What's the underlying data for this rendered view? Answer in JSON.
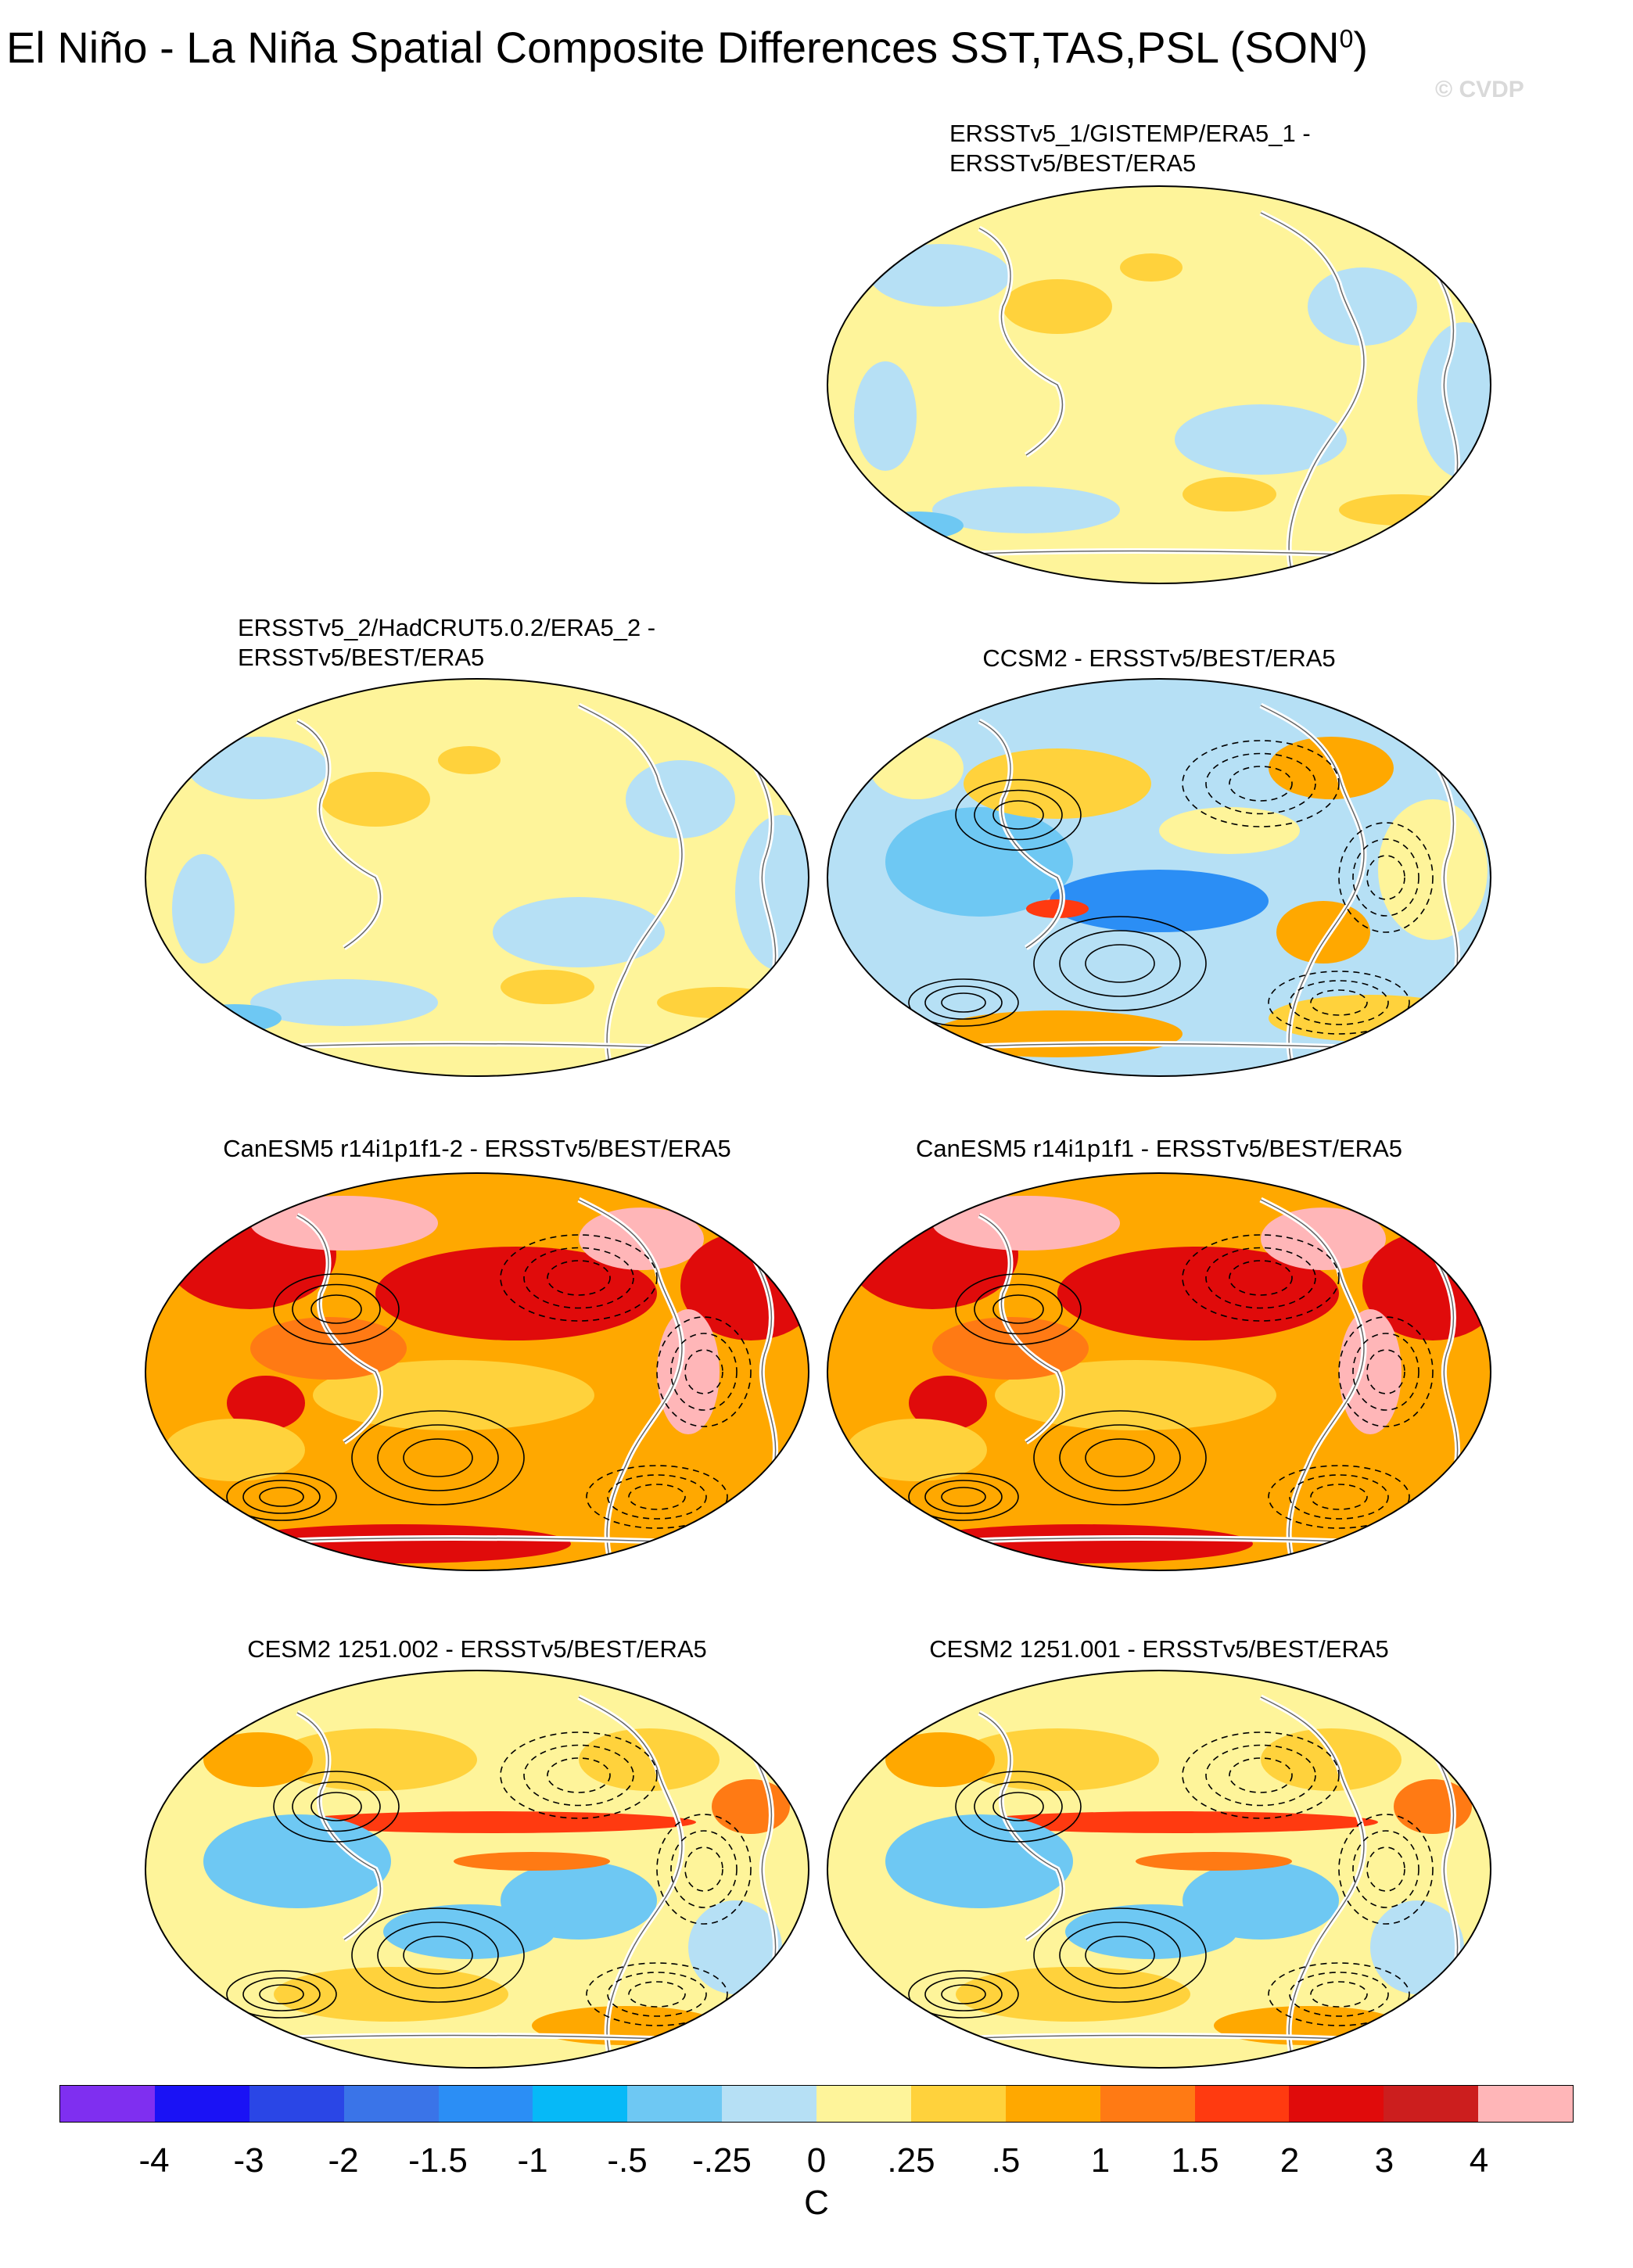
{
  "figure": {
    "title": "El Niño - La Niña Spatial Composite Differences SST,TAS,PSL (SON",
    "title_superscript": "0",
    "title_close": ")",
    "watermark": "© CVDP"
  },
  "panels": [
    {
      "id": "p1",
      "title_line1": "ERSSTv5_1/GISTEMP/ERA5_1 -",
      "title_line2": "ERSSTv5/BEST/ERA5",
      "style": "obs"
    },
    {
      "id": "p2",
      "title_line1": "ERSSTv5_2/HadCRUT5.0.2/ERA5_2 -",
      "title_line2": "ERSSTv5/BEST/ERA5",
      "style": "obs"
    },
    {
      "id": "p3",
      "title_line1": "CCSM2 - ERSSTv5/BEST/ERA5",
      "title_line2": "",
      "style": "ccsm"
    },
    {
      "id": "p4",
      "title_line1": "CanESM5 r14i1p1f1-2 - ERSSTv5/BEST/ERA5",
      "title_line2": "",
      "style": "warm"
    },
    {
      "id": "p5",
      "title_line1": "CanESM5 r14i1p1f1 - ERSSTv5/BEST/ERA5",
      "title_line2": "",
      "style": "warm"
    },
    {
      "id": "p6",
      "title_line1": "CESM2 1251.002 - ERSSTv5/BEST/ERA5",
      "title_line2": "",
      "style": "cesm"
    },
    {
      "id": "p7",
      "title_line1": "CESM2 1251.001 - ERSSTv5/BEST/ERA5",
      "title_line2": "",
      "style": "cesm"
    }
  ],
  "colorbar": {
    "colors": [
      "#7f2ff0",
      "#1a12f5",
      "#2a46e6",
      "#3a74e8",
      "#2b8ef5",
      "#06b9f7",
      "#6ec8f3",
      "#b6e0f5",
      "#fef49a",
      "#ffd23c",
      "#ffa800",
      "#ff7a14",
      "#ff3a10",
      "#e00b0b",
      "#cc1e1e",
      "#ffb6b8"
    ],
    "tick_labels": [
      "-4",
      "-3",
      "-2",
      "-1.5",
      "-1",
      "-.5",
      "-.25",
      "0",
      ".25",
      ".5",
      "1",
      "1.5",
      "2",
      "3",
      "4"
    ],
    "units": "C"
  }
}
